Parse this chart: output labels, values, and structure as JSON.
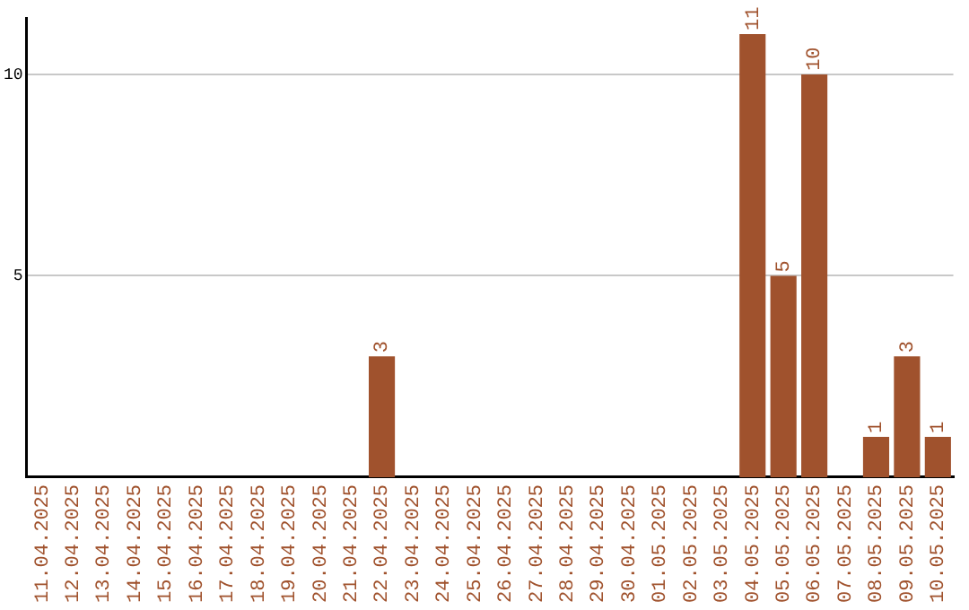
{
  "chart_data": {
    "type": "bar",
    "categories": [
      "11.04.2025",
      "12.04.2025",
      "13.04.2025",
      "14.04.2025",
      "15.04.2025",
      "16.04.2025",
      "17.04.2025",
      "18.04.2025",
      "19.04.2025",
      "20.04.2025",
      "21.04.2025",
      "22.04.2025",
      "23.04.2025",
      "24.04.2025",
      "25.04.2025",
      "26.04.2025",
      "27.04.2025",
      "28.04.2025",
      "29.04.2025",
      "30.04.2025",
      "01.05.2025",
      "02.05.2025",
      "03.05.2025",
      "04.05.2025",
      "05.05.2025",
      "06.05.2025",
      "07.05.2025",
      "08.05.2025",
      "09.05.2025",
      "10.05.2025"
    ],
    "values": [
      null,
      null,
      null,
      null,
      null,
      null,
      null,
      null,
      null,
      null,
      null,
      3,
      null,
      null,
      null,
      null,
      null,
      null,
      null,
      null,
      null,
      null,
      null,
      11,
      5,
      10,
      null,
      1,
      3,
      1
    ],
    "color": "#a0522d",
    "ylim": [
      0,
      11.4
    ],
    "yticks": [
      5,
      10
    ],
    "grid": "y",
    "data_labels": true,
    "legend": false
  }
}
